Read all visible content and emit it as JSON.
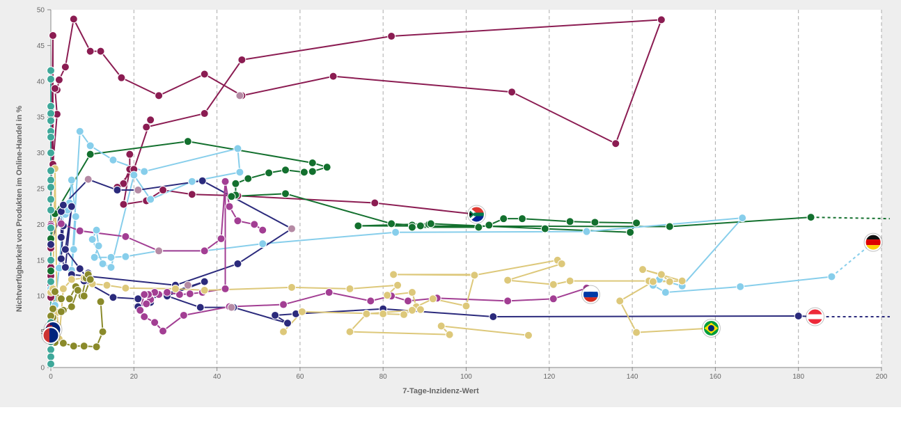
{
  "chart_data": {
    "type": "scatter",
    "xlabel": "7-Tage-Inzidenz-Wert",
    "ylabel": "Nichtverfügbarkeit von Produkten im Online-Handel in %",
    "xlim": [
      0,
      200
    ],
    "ylim": [
      0,
      50
    ],
    "x_ticks": [
      0,
      20,
      40,
      60,
      80,
      100,
      120,
      140,
      160,
      180,
      200
    ],
    "y_ticks": [
      0,
      5,
      10,
      15,
      20,
      25,
      30,
      35,
      40,
      45,
      50
    ],
    "x_gridlines": "dashed",
    "legend": "none (country flags at series endpoints)",
    "series": [
      {
        "color": "#8b1c52",
        "flag": "south-africa-flag",
        "flag_at": [
          102.5,
          21.4
        ],
        "points": [
          [
            102.5,
            21.4
          ],
          [
            78,
            23
          ],
          [
            45,
            24
          ],
          [
            34,
            24.2
          ],
          [
            27,
            24.8
          ],
          [
            23,
            23.3
          ],
          [
            17.5,
            22.8
          ],
          [
            19,
            27.7
          ],
          [
            19,
            29.8
          ],
          [
            19,
            27.7
          ],
          [
            17.5,
            25.7
          ],
          [
            16,
            25.2
          ],
          [
            20,
            27.7
          ],
          [
            24,
            34.6
          ],
          [
            23,
            33.6
          ],
          [
            37,
            35.5
          ],
          [
            46,
            43
          ],
          [
            82,
            46.3
          ],
          [
            147,
            48.6
          ],
          [
            136,
            31.3
          ],
          [
            111,
            38.5
          ],
          [
            68,
            40.7
          ],
          [
            46,
            38
          ],
          [
            37,
            41
          ],
          [
            26,
            38
          ],
          [
            17,
            40.5
          ],
          [
            12,
            44.2
          ],
          [
            9.5,
            44.2
          ],
          [
            5.5,
            48.7
          ],
          [
            3.5,
            42
          ],
          [
            2,
            40.2
          ],
          [
            1.5,
            38.8
          ],
          [
            1,
            39
          ],
          [
            1.5,
            35.4
          ],
          [
            0.5,
            28.4
          ],
          [
            0.5,
            46.4
          ],
          [
            0,
            20
          ],
          [
            0,
            16.7
          ],
          [
            0,
            14
          ],
          [
            0,
            12.8
          ],
          [
            0,
            11.5
          ],
          [
            0,
            9.8
          ]
        ]
      },
      {
        "color": "#13702e",
        "flag": "germany-flag",
        "flag_at": [
          198,
          17.5
        ],
        "points": [
          [
            0,
            13.5
          ],
          [
            0,
            18
          ],
          [
            1,
            21.5
          ],
          [
            9.5,
            29.8
          ],
          [
            33,
            31.6
          ],
          [
            63,
            28.6
          ],
          [
            66.5,
            28
          ],
          [
            63,
            27.4
          ],
          [
            61,
            27.3
          ],
          [
            56.5,
            27.6
          ],
          [
            52.5,
            27.2
          ],
          [
            47.5,
            26.4
          ],
          [
            44.5,
            25.7
          ],
          [
            44.5,
            24.1
          ],
          [
            43.5,
            23.9
          ],
          [
            56.5,
            24.3
          ],
          [
            82,
            20.1
          ],
          [
            87,
            19.9
          ],
          [
            91,
            20
          ],
          [
            89,
            19.8
          ],
          [
            87,
            19.6
          ],
          [
            103,
            19.6
          ],
          [
            105.5,
            19.9
          ],
          [
            109,
            20.8
          ],
          [
            113.5,
            20.8
          ],
          [
            125,
            20.4
          ],
          [
            131,
            20.3
          ],
          [
            141,
            20.2
          ],
          [
            139.5,
            18.9
          ],
          [
            119,
            19.4
          ],
          [
            91.5,
            20.1
          ],
          [
            74,
            19.8
          ],
          [
            149,
            19.7
          ],
          [
            183,
            21
          ]
        ],
        "projection": [
          [
            183,
            21
          ],
          [
            202,
            20.8
          ]
        ]
      },
      {
        "color": "#87ceeb",
        "flag": "germany-flag",
        "flag_at": [
          198,
          17.5
        ],
        "points": [
          [
            0,
            15
          ],
          [
            0,
            11
          ],
          [
            1,
            8.7
          ],
          [
            2,
            13.9
          ],
          [
            3,
            21.3
          ],
          [
            3.5,
            21.4
          ],
          [
            4,
            22
          ],
          [
            4.5,
            23
          ],
          [
            5,
            26.2
          ],
          [
            6,
            21.1
          ],
          [
            5.5,
            16.5
          ],
          [
            5,
            13.6
          ],
          [
            7,
            33
          ],
          [
            9.5,
            31
          ],
          [
            15,
            29
          ],
          [
            22.5,
            27.4
          ],
          [
            45,
            30.6
          ],
          [
            45.5,
            27.3
          ],
          [
            34,
            26
          ],
          [
            24,
            23.5
          ],
          [
            20,
            26.9
          ],
          [
            14.5,
            14
          ],
          [
            12.5,
            14.5
          ],
          [
            10,
            17.9
          ],
          [
            11,
            19.2
          ],
          [
            11.5,
            17
          ],
          [
            10.5,
            15.4
          ],
          [
            14.5,
            15.4
          ],
          [
            18,
            15.5
          ],
          [
            26,
            16.3
          ],
          [
            37,
            16.3
          ],
          [
            51,
            17.3
          ],
          [
            83,
            18.9
          ],
          [
            129,
            19
          ],
          [
            166.5,
            20.9
          ],
          [
            152,
            11.4
          ],
          [
            146.5,
            12.3
          ],
          [
            145,
            11.5
          ],
          [
            148,
            10.5
          ],
          [
            166,
            11.3
          ],
          [
            188,
            12.7
          ]
        ],
        "projection": [
          [
            188,
            12.7
          ],
          [
            198,
            17.5
          ]
        ]
      },
      {
        "color": "#2b2a7c",
        "flag": "austria-flag",
        "flag_at": [
          184,
          7.1
        ],
        "points": [
          [
            0,
            17.2
          ],
          [
            2.5,
            21.8
          ],
          [
            2.5,
            18.2
          ],
          [
            3,
            19.8
          ],
          [
            2.5,
            15.2
          ],
          [
            3.5,
            14
          ],
          [
            5,
            22.5
          ],
          [
            3.5,
            16.5
          ],
          [
            7,
            13.8
          ],
          [
            9.5,
            12
          ],
          [
            9,
            13.2
          ],
          [
            8,
            12.1
          ],
          [
            15,
            9.8
          ],
          [
            21,
            9.6
          ],
          [
            21,
            8.5
          ],
          [
            24,
            9.1
          ],
          [
            24,
            9.6
          ],
          [
            37,
            12
          ],
          [
            28,
            10
          ],
          [
            36,
            8.4
          ],
          [
            44,
            8.4
          ],
          [
            57,
            6.2
          ],
          [
            54,
            7.3
          ],
          [
            59,
            7.5
          ],
          [
            80,
            8.2
          ],
          [
            106.5,
            7.1
          ],
          [
            180,
            7.2
          ],
          [
            184,
            7.1
          ]
        ],
        "projection": [
          [
            184,
            7.1
          ],
          [
            202,
            7.1
          ]
        ]
      },
      {
        "color": "#2b2a7c",
        "flag": "austria-flag",
        "flag_at": [
          184,
          7.1
        ],
        "points": [
          [
            3,
            22.7
          ],
          [
            9,
            26.3
          ],
          [
            16,
            24.8
          ],
          [
            21,
            24.8
          ],
          [
            36.5,
            26.1
          ],
          [
            58,
            19.4
          ],
          [
            45,
            14.5
          ],
          [
            30,
            11.5
          ],
          [
            5,
            13
          ]
        ]
      },
      {
        "color": "#a23e93",
        "flag": "russia-flag",
        "flag_at": [
          130,
          10.2
        ],
        "points": [
          [
            0,
            19.8
          ],
          [
            2.5,
            20.1
          ],
          [
            7,
            19.1
          ],
          [
            18,
            18.3
          ],
          [
            26,
            16.3
          ],
          [
            37,
            16.3
          ],
          [
            41,
            18
          ],
          [
            42,
            26
          ],
          [
            42,
            11
          ],
          [
            36.5,
            10.5
          ],
          [
            33.5,
            10.3
          ],
          [
            31,
            10.2
          ],
          [
            28,
            10.5
          ],
          [
            26,
            10.2
          ],
          [
            25,
            10.5
          ],
          [
            24,
            9.5
          ],
          [
            23,
            8.9
          ],
          [
            23.5,
            10.2
          ],
          [
            22.5,
            10.2
          ],
          [
            21.5,
            8
          ],
          [
            22.5,
            7.1
          ],
          [
            25,
            6.3
          ],
          [
            27,
            5.1
          ],
          [
            32,
            7.3
          ],
          [
            43,
            8.5
          ],
          [
            56,
            8.8
          ],
          [
            67,
            10.5
          ],
          [
            77,
            9.3
          ],
          [
            82,
            10
          ],
          [
            86,
            9.3
          ],
          [
            93,
            9.7
          ],
          [
            110,
            9.3
          ],
          [
            121,
            9.6
          ],
          [
            129,
            11.1
          ],
          [
            130,
            10.2
          ]
        ]
      },
      {
        "color": "#a23e93",
        "flag": "russia-flag",
        "flag_at": [
          130,
          10.2
        ],
        "points": [
          [
            42,
            26
          ],
          [
            43,
            22.5
          ],
          [
            45,
            20.5
          ],
          [
            49,
            20
          ],
          [
            51,
            19.2
          ]
        ]
      },
      {
        "color": "#ddc87a",
        "flag": "brazil-flag",
        "flag_at": [
          159,
          5.5
        ],
        "points": [
          [
            0,
            10.5
          ],
          [
            0.5,
            11
          ],
          [
            1,
            27.8
          ],
          [
            1.5,
            7.7
          ],
          [
            2,
            4
          ],
          [
            3,
            11
          ],
          [
            5,
            12.3
          ],
          [
            8,
            12.5
          ],
          [
            10,
            11.7
          ],
          [
            13.5,
            11.5
          ],
          [
            18,
            11.1
          ],
          [
            30,
            11
          ],
          [
            37,
            10.8
          ],
          [
            58,
            11.2
          ],
          [
            72,
            11
          ],
          [
            83.5,
            11.5
          ],
          [
            81,
            10.1
          ],
          [
            87,
            10.5
          ],
          [
            88,
            8.5
          ],
          [
            92,
            9.6
          ],
          [
            100,
            8.6
          ],
          [
            102,
            13
          ],
          [
            82.5,
            13
          ],
          [
            102,
            12.9
          ],
          [
            122,
            15
          ],
          [
            123,
            14.5
          ],
          [
            110,
            12.2
          ],
          [
            121,
            11.6
          ],
          [
            125,
            12.1
          ],
          [
            144,
            12.1
          ],
          [
            149,
            12
          ],
          [
            147,
            13
          ],
          [
            142.5,
            13.7
          ],
          [
            152,
            12.1
          ],
          [
            145,
            12
          ],
          [
            137,
            9.3
          ],
          [
            141,
            4.9
          ],
          [
            159,
            5.5
          ]
        ]
      },
      {
        "color": "#ddc87a",
        "flag": "brazil-flag",
        "flag_at": [
          159,
          5.5
        ],
        "points": [
          [
            56,
            5
          ],
          [
            60.5,
            7.8
          ],
          [
            80,
            7.5
          ],
          [
            85,
            7.4
          ],
          [
            87,
            8
          ],
          [
            89,
            8.1
          ],
          [
            76,
            7.5
          ],
          [
            72,
            5
          ],
          [
            96,
            4.6
          ],
          [
            94,
            5.8
          ],
          [
            115,
            4.5
          ]
        ]
      },
      {
        "color": "#8a8a2a",
        "flag": "australia-flag",
        "flag_at": [
          0.5,
          5.3
        ],
        "points": [
          [
            0,
            6
          ],
          [
            0.5,
            8.2
          ],
          [
            1,
            10.6
          ],
          [
            2.5,
            9.6
          ],
          [
            4.5,
            9.6
          ],
          [
            6,
            11.3
          ],
          [
            7.5,
            10
          ],
          [
            8.5,
            12.5
          ],
          [
            9,
            13
          ],
          [
            9.5,
            12.3
          ],
          [
            8,
            10
          ],
          [
            6.5,
            10.8
          ],
          [
            5,
            8.5
          ],
          [
            3,
            8
          ],
          [
            2.5,
            7.8
          ],
          [
            0.5,
            7
          ],
          [
            0,
            7.2
          ],
          [
            0,
            5
          ],
          [
            1,
            4.5
          ],
          [
            1,
            3.5
          ],
          [
            3,
            3.4
          ],
          [
            5.5,
            3
          ],
          [
            8,
            3
          ],
          [
            11,
            2.9
          ],
          [
            12.5,
            5
          ],
          [
            12,
            9.2
          ]
        ]
      },
      {
        "color": "#3fa89a",
        "flag": "new-zealand-flag",
        "flag_at": [
          0,
          4.5
        ],
        "points": [
          [
            0,
            41.5
          ],
          [
            0,
            40.3
          ],
          [
            0,
            36.5
          ],
          [
            0,
            35.5
          ],
          [
            0,
            34.5
          ],
          [
            0,
            33
          ],
          [
            0,
            32.2
          ],
          [
            0,
            30
          ],
          [
            0,
            27.5
          ],
          [
            0,
            26.2
          ],
          [
            0,
            25.2
          ],
          [
            0,
            23.5
          ],
          [
            0,
            22
          ],
          [
            0,
            19.5
          ],
          [
            0,
            15
          ],
          [
            0,
            12
          ],
          [
            0,
            6.3
          ],
          [
            0,
            4.5
          ],
          [
            0,
            3.6
          ],
          [
            0,
            2.5
          ],
          [
            0,
            1.5
          ],
          [
            0,
            0.5
          ]
        ]
      }
    ],
    "highlight_points": [
      [
        45.5,
        38
      ],
      [
        33,
        11.5
      ],
      [
        58,
        19.4
      ],
      [
        43.5,
        8.4
      ],
      [
        9,
        26.3
      ],
      [
        21,
        24.8
      ],
      [
        26,
        16.3
      ]
    ]
  }
}
